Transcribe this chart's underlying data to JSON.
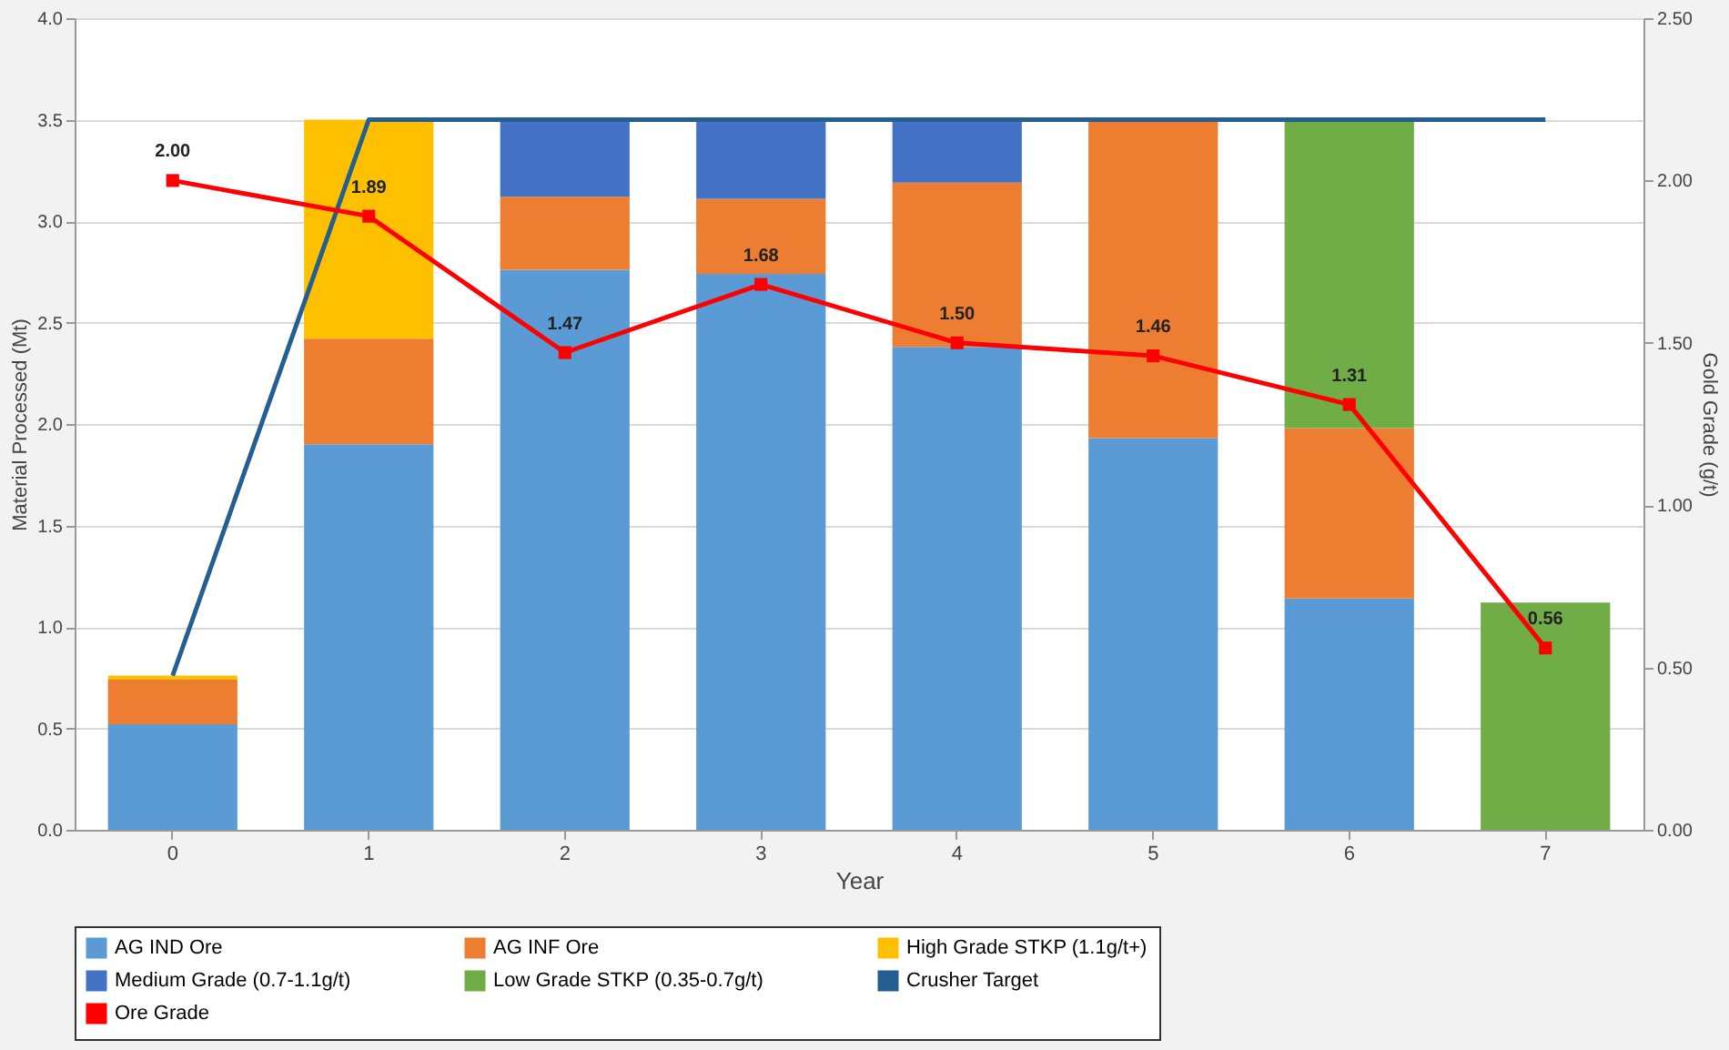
{
  "chart_data": {
    "type": "bar",
    "stacked": true,
    "xlabel": "Year",
    "ylabel": "Material Processed (Mt)",
    "y2label": "Gold Grade (g/t)",
    "categories": [
      "0",
      "1",
      "2",
      "3",
      "4",
      "5",
      "6",
      "7"
    ],
    "series": [
      {
        "name": "AG IND Ore",
        "color": "#5b9bd5",
        "values": [
          0.52,
          1.9,
          2.76,
          2.74,
          2.38,
          1.93,
          1.14,
          null
        ]
      },
      {
        "name": "AG INF Ore",
        "color": "#ed7d31",
        "values": [
          0.22,
          0.52,
          0.36,
          0.37,
          0.81,
          1.57,
          0.84,
          null
        ]
      },
      {
        "name": "High Grade STKP (1.1g/t+)",
        "color": "#ffc000",
        "values": [
          0.02,
          1.08,
          null,
          null,
          null,
          null,
          null,
          null
        ]
      },
      {
        "name": "Medium Grade (0.7-1.1g/t)",
        "color": "#4472c4",
        "values": [
          null,
          null,
          0.38,
          0.39,
          0.31,
          null,
          null,
          null
        ]
      },
      {
        "name": "Low Grade STKP (0.35-0.7g/t)",
        "color": "#70ad47",
        "values": [
          null,
          null,
          null,
          null,
          null,
          null,
          1.52,
          1.12
        ]
      },
      {
        "name": "Crusher Target",
        "type": "line",
        "color": "#255e91",
        "marker": "none",
        "values": [
          0.76,
          3.5,
          3.5,
          3.5,
          3.5,
          3.5,
          3.5,
          3.5
        ]
      },
      {
        "name": "Ore Grade",
        "type": "line",
        "axis": "y2",
        "color": "#ff0000",
        "marker": "square",
        "values": [
          2.0,
          1.89,
          1.47,
          1.68,
          1.5,
          1.46,
          1.31,
          0.56
        ],
        "value_labels": [
          "2.00",
          "1.89",
          "1.47",
          "1.68",
          "1.50",
          "1.46",
          "1.31",
          "0.56"
        ]
      }
    ],
    "ylim": [
      0,
      4
    ],
    "yticks": [
      {
        "value": 0,
        "label": "0.0"
      },
      {
        "value": 0.5,
        "label": "0.5"
      },
      {
        "value": 1,
        "label": "1.0"
      },
      {
        "value": 1.5,
        "label": "1.5"
      },
      {
        "value": 2,
        "label": "2.0"
      },
      {
        "value": 2.5,
        "label": "2.5"
      },
      {
        "value": 3,
        "label": "3.0"
      },
      {
        "value": 3.5,
        "label": "3.5"
      },
      {
        "value": 4,
        "label": "4.0"
      }
    ],
    "y2lim": [
      0,
      2.5
    ],
    "y2ticks": [
      {
        "value": 0,
        "label": "0.00"
      },
      {
        "value": 0.5,
        "label": "0.50"
      },
      {
        "value": 1,
        "label": "1.00"
      },
      {
        "value": 1.5,
        "label": "1.50"
      },
      {
        "value": 2,
        "label": "2.00"
      },
      {
        "value": 2.5,
        "label": "2.50"
      }
    ],
    "grid": "y",
    "legend": "bottom"
  }
}
